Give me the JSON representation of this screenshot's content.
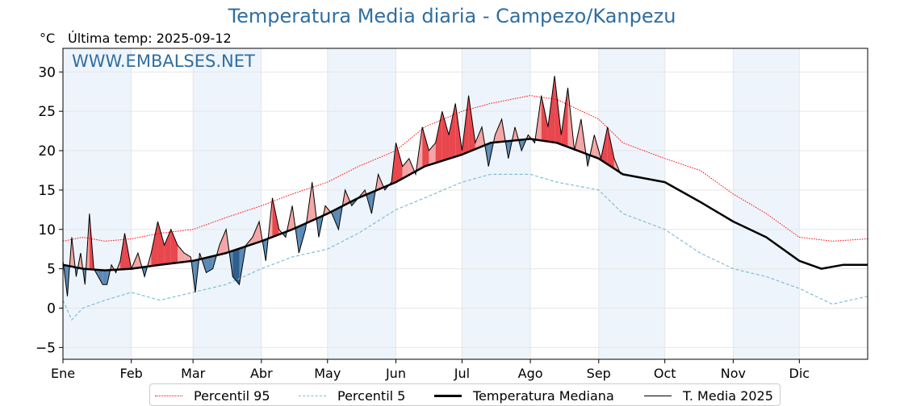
{
  "title": "Temperatura Media diaria - Campezo/Kanpezu",
  "unit_label": "°C",
  "last_temp_label": "Última temp: 2025-09-12",
  "watermark": "WWW.EMBALSES.NET",
  "colors": {
    "title": "#2e6ea3",
    "p95": "#ff0000",
    "p5": "#7fbfd6",
    "median": "#000000",
    "current": "#000000",
    "above_fill": "#f4a5a5",
    "above_fill_strong": "#e8474d",
    "below_fill": "#5a8ab5",
    "below_fill_strong": "#2f5f8f",
    "month_band": "#eef4fb"
  },
  "chart_data": {
    "type": "line",
    "title": "Temperatura Media diaria - Campezo/Kanpezu",
    "xlabel": "",
    "ylabel": "°C",
    "ylim": [
      -6.5,
      33
    ],
    "xlim": [
      1,
      366
    ],
    "y_ticks": [
      -5,
      0,
      5,
      10,
      15,
      20,
      25,
      30
    ],
    "x_ticks": [
      {
        "label": "Ene",
        "day": 1
      },
      {
        "label": "Feb",
        "day": 32
      },
      {
        "label": "Mar",
        "day": 60
      },
      {
        "label": "Abr",
        "day": 91
      },
      {
        "label": "May",
        "day": 121
      },
      {
        "label": "Jun",
        "day": 152
      },
      {
        "label": "Jul",
        "day": 182
      },
      {
        "label": "Ago",
        "day": 213
      },
      {
        "label": "Sep",
        "day": 244
      },
      {
        "label": "Oct",
        "day": 274
      },
      {
        "label": "Nov",
        "day": 305
      },
      {
        "label": "Dic",
        "day": 335
      }
    ],
    "grid": true,
    "legend_position": "bottom-center",
    "series": [
      {
        "name": "Percentil 95",
        "style": "dotted-red",
        "x": [
          1,
          10,
          20,
          32,
          45,
          60,
          75,
          91,
          105,
          121,
          135,
          152,
          165,
          182,
          195,
          213,
          225,
          244,
          255,
          274,
          290,
          305,
          320,
          335,
          350,
          366
        ],
        "y": [
          8.5,
          9,
          8.5,
          8.8,
          9.5,
          10,
          11.5,
          13,
          14.5,
          16,
          18,
          20,
          23,
          25,
          26,
          27,
          26.5,
          24,
          21,
          19,
          17.5,
          14.5,
          12,
          9,
          8.5,
          8.8
        ]
      },
      {
        "name": "Percentil 5",
        "style": "dashed-lightblue",
        "x": [
          1,
          5,
          10,
          20,
          32,
          45,
          60,
          75,
          91,
          105,
          121,
          135,
          152,
          165,
          182,
          195,
          213,
          225,
          244,
          255,
          274,
          290,
          305,
          320,
          335,
          350,
          366
        ],
        "y": [
          1,
          -1.5,
          0,
          1,
          2,
          1,
          2,
          3,
          5,
          6.5,
          7.5,
          9.5,
          12.5,
          14,
          16,
          17,
          17,
          16,
          15,
          12,
          10,
          7,
          5,
          4,
          2.5,
          0.5,
          1.5
        ]
      },
      {
        "name": "Temperatura Mediana",
        "style": "thick-black",
        "x": [
          1,
          10,
          20,
          32,
          45,
          60,
          75,
          91,
          105,
          121,
          135,
          152,
          165,
          182,
          195,
          213,
          225,
          244,
          255,
          274,
          290,
          305,
          320,
          335,
          345,
          355,
          366
        ],
        "y": [
          5.5,
          5,
          4.8,
          5,
          5.5,
          6,
          7,
          8.5,
          10,
          12,
          14,
          16,
          18,
          19.5,
          21,
          21.5,
          21,
          19,
          17,
          16,
          13.5,
          11,
          9,
          6,
          5,
          5.5,
          5.5
        ]
      },
      {
        "name": "T. Media 2025",
        "style": "thin-black",
        "x": [
          1,
          3,
          5,
          7,
          9,
          11,
          13,
          15,
          17,
          19,
          21,
          23,
          25,
          27,
          29,
          32,
          35,
          38,
          41,
          44,
          47,
          50,
          53,
          56,
          59,
          61,
          63,
          66,
          69,
          72,
          75,
          78,
          81,
          84,
          87,
          90,
          93,
          96,
          99,
          102,
          105,
          108,
          111,
          114,
          117,
          120,
          123,
          126,
          129,
          132,
          135,
          138,
          141,
          144,
          147,
          150,
          152,
          155,
          158,
          161,
          164,
          167,
          170,
          173,
          176,
          179,
          182,
          185,
          188,
          191,
          194,
          197,
          200,
          203,
          206,
          209,
          212,
          215,
          218,
          221,
          224,
          227,
          230,
          233,
          236,
          239,
          242,
          245,
          248,
          251,
          254
        ],
        "y": [
          6,
          1.5,
          9,
          4,
          7,
          3,
          12,
          5,
          4,
          3,
          3,
          5.5,
          4.5,
          6,
          9.5,
          5,
          7,
          4,
          7,
          11,
          8,
          10,
          8,
          7,
          6.5,
          2,
          7,
          4.5,
          5,
          8,
          10,
          4,
          3,
          8,
          9,
          11,
          6,
          14,
          10,
          9,
          13,
          7,
          10,
          16,
          9,
          13,
          12,
          10,
          15,
          13,
          14,
          15,
          12,
          17,
          15,
          16,
          21,
          18,
          19,
          17,
          23,
          20,
          21,
          25,
          22,
          26,
          20,
          27,
          21,
          23,
          18,
          22,
          24,
          19,
          23,
          20,
          22,
          21,
          27,
          23,
          29.5,
          22,
          28,
          20,
          24,
          18,
          22,
          19,
          23,
          19,
          17
        ]
      }
    ]
  },
  "legend": {
    "p95_label": "Percentil 95",
    "p5_label": "Percentil 5",
    "median_label": "Temperatura Mediana",
    "current_label": "T. Media 2025"
  }
}
